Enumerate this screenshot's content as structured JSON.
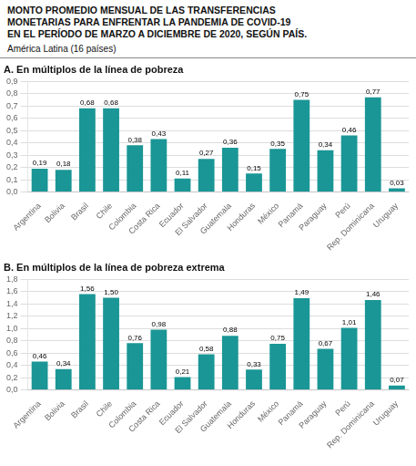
{
  "title": "MONTO PROMEDIO MENSUAL DE LAS TRANSFERENCIAS\nMONETARIAS PARA ENFRENTAR LA PANDEMIA DE COVID-19\nEN EL PERÍODO DE MARZO A DICIEMBRE DE 2020, SEGÚN PAÍS.",
  "subtitle": "América Latina (16 países)",
  "chart_data": [
    {
      "type": "bar",
      "title": "A. En múltiplos de la línea de pobreza",
      "categories": [
        "Argentina",
        "Bolivia",
        "Brasil",
        "Chile",
        "Colombia",
        "Costa Rica",
        "Ecuador",
        "El Salvador",
        "Guatemala",
        "Honduras",
        "México",
        "Panamá",
        "Paraguay",
        "Perú",
        "Rep. Dominicana",
        "Uruguay"
      ],
      "values": [
        0.19,
        0.18,
        0.68,
        0.68,
        0.38,
        0.43,
        0.11,
        0.27,
        0.36,
        0.15,
        0.35,
        0.75,
        0.34,
        0.46,
        0.77,
        0.03
      ],
      "value_labels": [
        "0,19",
        "0,18",
        "0,68",
        "0,68",
        "0,38",
        "0,43",
        "0,11",
        "0,27",
        "0,36",
        "0,15",
        "0,35",
        "0,75",
        "0,34",
        "0,46",
        "0,77",
        "0,03"
      ],
      "data_labels": true,
      "color": "#1a9696",
      "ylim": [
        0,
        0.9
      ],
      "yticks": [
        {
          "value": 0,
          "label": "0,0"
        },
        {
          "value": 0.1,
          "label": "0,1"
        },
        {
          "value": 0.2,
          "label": "0,2"
        },
        {
          "value": 0.3,
          "label": "0,3"
        },
        {
          "value": 0.4,
          "label": "0,4"
        },
        {
          "value": 0.5,
          "label": "0,5"
        },
        {
          "value": 0.6,
          "label": "0,6"
        },
        {
          "value": 0.7,
          "label": "0,7"
        },
        {
          "value": 0.8,
          "label": "0,8"
        },
        {
          "value": 0.9,
          "label": "0,9"
        }
      ],
      "grid": true
    },
    {
      "type": "bar",
      "title": "B. En múltiplos de la línea de pobreza extrema",
      "categories": [
        "Argentina",
        "Bolivia",
        "Brasil",
        "Chile",
        "Colombia",
        "Costa Rica",
        "Ecuador",
        "El Salvador",
        "Guatemala",
        "Honduras",
        "México",
        "Panamá",
        "Paraguay",
        "Perú",
        "Rep. Dominicana",
        "Uruguay"
      ],
      "values": [
        0.46,
        0.34,
        1.56,
        1.5,
        0.76,
        0.98,
        0.21,
        0.58,
        0.88,
        0.33,
        0.75,
        1.49,
        0.67,
        1.01,
        1.46,
        0.07
      ],
      "value_labels": [
        "0,46",
        "0,34",
        "1,56",
        "1,50",
        "0,76",
        "0,98",
        "0,21",
        "0,58",
        "0,88",
        "0,33",
        "0,75",
        "1,49",
        "0,67",
        "1,01",
        "1,46",
        "0,07"
      ],
      "data_labels": true,
      "color": "#1a9696",
      "ylim": [
        0,
        1.8
      ],
      "yticks": [
        {
          "value": 0,
          "label": "0,0"
        },
        {
          "value": 0.2,
          "label": "0,2"
        },
        {
          "value": 0.4,
          "label": "0,4"
        },
        {
          "value": 0.6,
          "label": "0,6"
        },
        {
          "value": 0.8,
          "label": "0,8"
        },
        {
          "value": 1.0,
          "label": "1,0"
        },
        {
          "value": 1.2,
          "label": "1,2"
        },
        {
          "value": 1.4,
          "label": "1,4"
        },
        {
          "value": 1.6,
          "label": "1,6"
        },
        {
          "value": 1.8,
          "label": "1,8"
        }
      ],
      "grid": true
    }
  ]
}
